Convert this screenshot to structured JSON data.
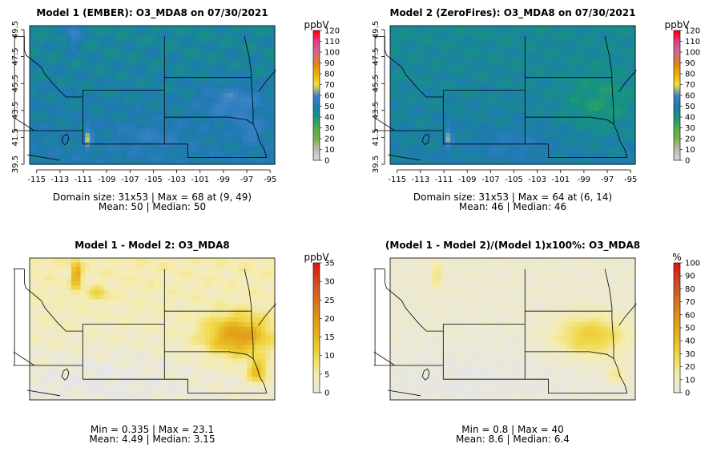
{
  "chart_data": [
    {
      "type": "heatmap",
      "title": "Model 1 (EMBER): O3_MDA8 on 07/30/2021",
      "unit": "ppbV",
      "xticks": [
        "-115",
        "-113",
        "-111",
        "-109",
        "-107",
        "-105",
        "-103",
        "-101",
        "-99",
        "-97",
        "-95"
      ],
      "yticks": [
        "39.5",
        "41.5",
        "43.5",
        "45.5",
        "47.5",
        "49.5"
      ],
      "colorbar_ticks": [
        "0",
        "10",
        "20",
        "30",
        "40",
        "50",
        "60",
        "70",
        "80",
        "90",
        "100",
        "110",
        "120"
      ],
      "colorbar_range": [
        0,
        120
      ],
      "colorscale": "gray-green-teal-blue-yellow-orange-pink-red",
      "field_range": [
        40,
        68
      ],
      "stats_line1": "Domain size: 31x53 | Max = 68 at (9, 49)",
      "stats_line2": "Mean: 50 |  Median: 50"
    },
    {
      "type": "heatmap",
      "title": "Model 2 (ZeroFires): O3_MDA8 on 07/30/2021",
      "unit": "ppbV",
      "xticks": [
        "-115",
        "-113",
        "-111",
        "-109",
        "-107",
        "-105",
        "-103",
        "-101",
        "-99",
        "-97",
        "-95"
      ],
      "yticks": [
        "39.5",
        "41.5",
        "43.5",
        "45.5",
        "47.5",
        "49.5"
      ],
      "colorbar_ticks": [
        "0",
        "10",
        "20",
        "30",
        "40",
        "50",
        "60",
        "70",
        "80",
        "90",
        "100",
        "110",
        "120"
      ],
      "colorbar_range": [
        0,
        120
      ],
      "colorscale": "gray-green-teal-blue-yellow-orange-pink-red",
      "field_range": [
        35,
        64
      ],
      "stats_line1": "Domain size: 31x53 | Max = 64 at (6, 14)",
      "stats_line2": "Mean: 46 |  Median: 46"
    },
    {
      "type": "heatmap",
      "title": "Model 1 - Model 2: O3_MDA8",
      "unit": "ppbV",
      "colorbar_ticks": [
        "0",
        "5",
        "10",
        "15",
        "20",
        "25",
        "30",
        "35"
      ],
      "colorbar_range": [
        0,
        35
      ],
      "colorscale": "gray-yellow-orange-red",
      "field_range": [
        0.335,
        23.1
      ],
      "stats_line1": "Min = 0.335 | Max = 23.1",
      "stats_line2": "Mean: 4.49 |  Median: 3.15"
    },
    {
      "type": "heatmap",
      "title": "(Model 1 - Model 2)/(Model 1)x100%: O3_MDA8",
      "unit": "%",
      "colorbar_ticks": [
        "0",
        "10",
        "20",
        "30",
        "40",
        "50",
        "60",
        "70",
        "80",
        "90",
        "100"
      ],
      "colorbar_range": [
        0,
        100
      ],
      "colorscale": "gray-yellow-orange-red",
      "field_range": [
        0.8,
        40
      ],
      "stats_line1": "Min = 0.8 | Max = 40",
      "stats_line2": "Mean: 8.6 |  Median: 6.4"
    }
  ],
  "colors": {
    "abs_scale": [
      "#d9d9d9",
      "#bdbdbd",
      "#7ab342",
      "#4caf50",
      "#16947e",
      "#1f7ab0",
      "#3b82c8",
      "#f0e040",
      "#f0b000",
      "#e08020",
      "#d46a8a",
      "#e0408a",
      "#ff0000"
    ],
    "diff_scale": [
      "#e6e6e6",
      "#f5ecb0",
      "#f0d848",
      "#e8b820",
      "#e09818",
      "#d87020",
      "#cc4a20",
      "#e81010"
    ],
    "border": "#000000"
  }
}
